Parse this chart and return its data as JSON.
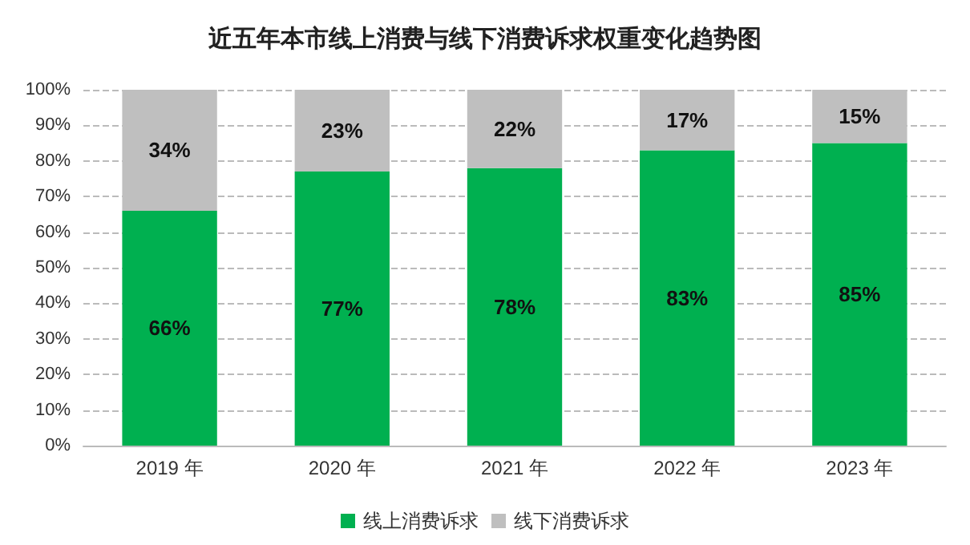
{
  "chart_data": {
    "type": "bar",
    "title": "近五年本市线上消费与线下消费诉求权重变化趋势图",
    "categories": [
      "2019 年",
      "2020 年",
      "2021 年",
      "2022 年",
      "2023 年"
    ],
    "stacked": true,
    "series": [
      {
        "name": "线上消费诉求",
        "color": "#00b050",
        "values": [
          66,
          77,
          78,
          83,
          85
        ],
        "value_labels": [
          "66%",
          "77%",
          "78%",
          "83%",
          "85%"
        ]
      },
      {
        "name": "线下消费诉求",
        "color": "#bfbfbf",
        "values": [
          34,
          23,
          22,
          17,
          15
        ],
        "value_labels": [
          "34%",
          "23%",
          "22%",
          "17%",
          "15%"
        ]
      }
    ],
    "ylim": [
      0,
      100
    ],
    "yticks": [
      {
        "value": 0,
        "label": "0%"
      },
      {
        "value": 10,
        "label": "10%"
      },
      {
        "value": 20,
        "label": "20%"
      },
      {
        "value": 30,
        "label": "30%"
      },
      {
        "value": 40,
        "label": "40%"
      },
      {
        "value": 50,
        "label": "50%"
      },
      {
        "value": 60,
        "label": "60%"
      },
      {
        "value": 70,
        "label": "70%"
      },
      {
        "value": 80,
        "label": "80%"
      },
      {
        "value": 90,
        "label": "90%"
      },
      {
        "value": 100,
        "label": "100%"
      }
    ],
    "grid": "y",
    "legend": "bottom"
  }
}
